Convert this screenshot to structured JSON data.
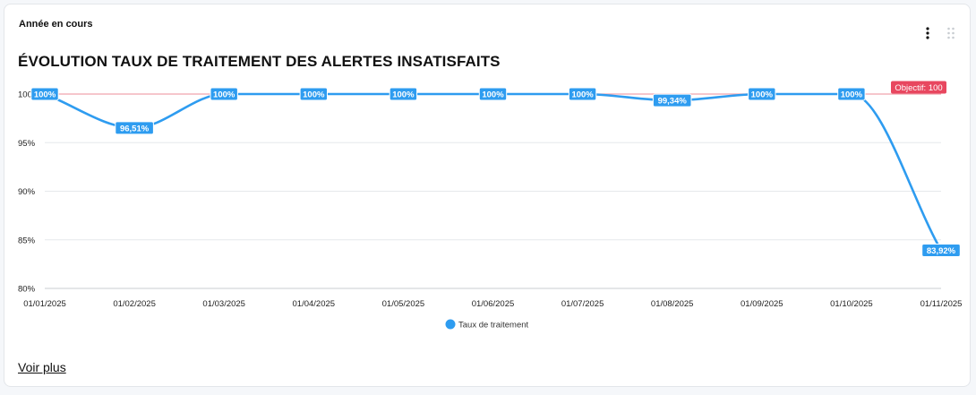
{
  "card": {
    "period_label": "Année en cours",
    "title": "ÉVOLUTION TAUX DE TRAITEMENT DES ALERTES INSATISFAITS",
    "see_more": "Voir plus",
    "menu_icon": "kebab-menu-icon",
    "drag_icon": "drag-handle-icon"
  },
  "chart_data": {
    "type": "line",
    "categories": [
      "01/01/2025",
      "01/02/2025",
      "01/03/2025",
      "01/04/2025",
      "01/05/2025",
      "01/06/2025",
      "01/07/2025",
      "01/08/2025",
      "01/09/2025",
      "01/10/2025",
      "01/11/2025"
    ],
    "series": [
      {
        "name": "Taux de traitement",
        "color": "#2e9cf0",
        "values": [
          100,
          96.51,
          100,
          100,
          100,
          100,
          100,
          99.34,
          100,
          100,
          83.92
        ],
        "labels": [
          "100%",
          "96,51%",
          "100%",
          "100%",
          "100%",
          "100%",
          "100%",
          "99,34%",
          "100%",
          "100%",
          "83,92%"
        ]
      }
    ],
    "y_ticks": [
      "100",
      "95%",
      "90%",
      "85%",
      "80%"
    ],
    "y_tick_values": [
      100,
      95,
      90,
      85,
      80
    ],
    "ylim": [
      80,
      100
    ],
    "target": {
      "value": 100,
      "label": "Objectif: 100",
      "color": "#e8475f",
      "line_color": "#f0a3ad"
    },
    "grid": true,
    "legend": "bottom-center"
  }
}
